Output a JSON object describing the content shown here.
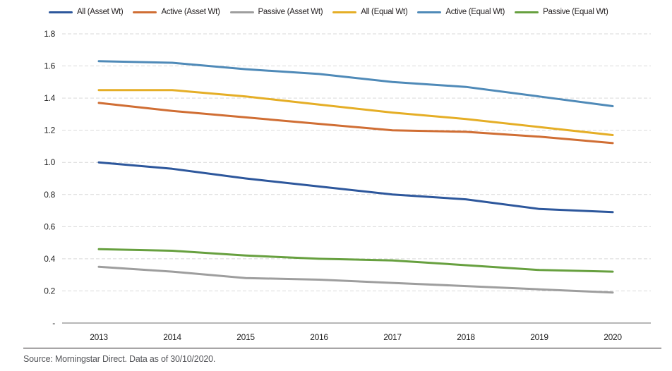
{
  "chart_data": {
    "type": "line",
    "x_ticks": [
      "2013",
      "2014",
      "2015",
      "2016",
      "2017",
      "2018",
      "2019",
      "2020"
    ],
    "y_ticks": [
      "1.8",
      "1.6",
      "1.4",
      "1.2",
      "1.0",
      "0.8",
      "0.6",
      "0.4",
      "0.2",
      "-"
    ],
    "ylim": [
      0,
      1.8
    ],
    "grid": "horizontal-dashed",
    "legend_position": "top",
    "series": [
      {
        "name": "All (Asset Wt)",
        "color": "#2d579c",
        "values": [
          1.0,
          0.96,
          0.9,
          0.85,
          0.8,
          0.77,
          0.71,
          0.69
        ]
      },
      {
        "name": "Active (Asset Wt)",
        "color": "#d06e34",
        "values": [
          1.37,
          1.32,
          1.28,
          1.24,
          1.2,
          1.19,
          1.16,
          1.12
        ]
      },
      {
        "name": "Passive (Asset Wt)",
        "color": "#9e9e9e",
        "values": [
          0.35,
          0.32,
          0.28,
          0.27,
          0.25,
          0.23,
          0.21,
          0.19
        ]
      },
      {
        "name": "All (Equal Wt)",
        "color": "#e5ae26",
        "values": [
          1.45,
          1.45,
          1.41,
          1.36,
          1.31,
          1.27,
          1.22,
          1.17
        ]
      },
      {
        "name": "Active (Equal Wt)",
        "color": "#4f8ab8",
        "values": [
          1.63,
          1.62,
          1.58,
          1.55,
          1.5,
          1.47,
          1.41,
          1.35
        ]
      },
      {
        "name": "Passive (Equal Wt)",
        "color": "#67a03f",
        "values": [
          0.46,
          0.45,
          0.42,
          0.4,
          0.39,
          0.36,
          0.33,
          0.32
        ]
      }
    ],
    "styles": {
      "gridline_color": "#d9d9d9",
      "axis_color": "#8c8c8c",
      "line_width": 3
    }
  },
  "footer": {
    "source": "Source: Morningstar Direct. Data as of 30/10/2020."
  }
}
